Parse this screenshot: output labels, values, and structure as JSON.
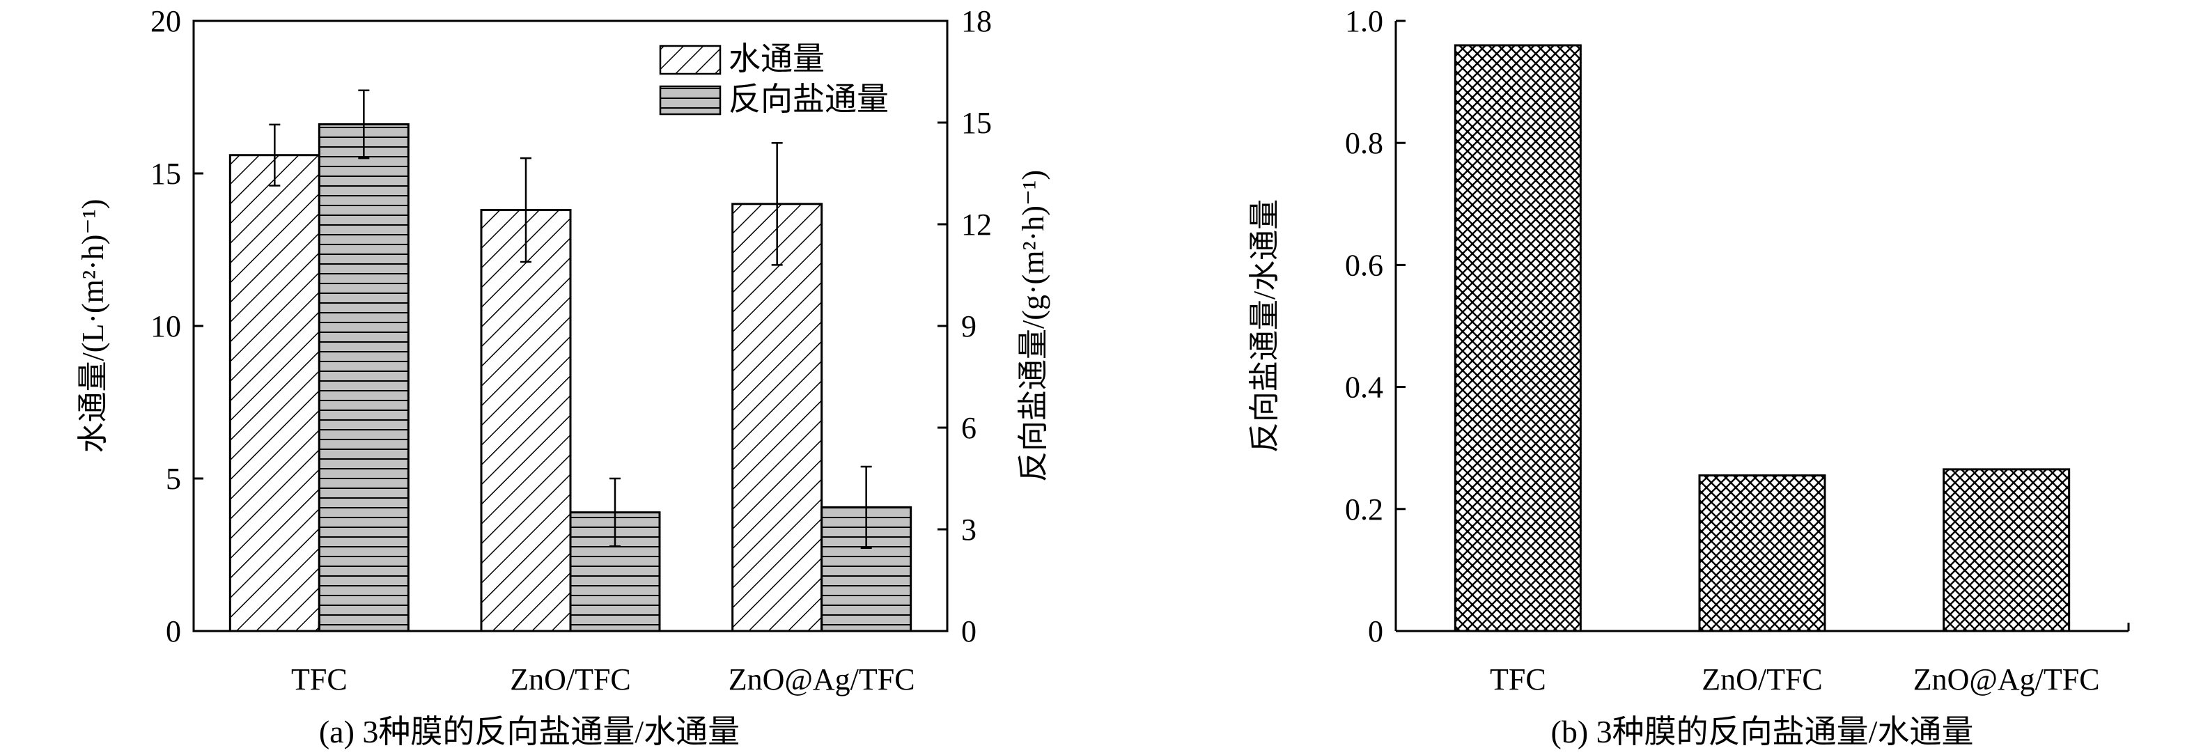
{
  "chart_data": [
    {
      "type": "bar",
      "caption": "(a) 3种膜的反向盐通量/水通量",
      "categories": [
        "TFC",
        "ZnO/TFC",
        "ZnO@Ag/TFC"
      ],
      "ylabel_left": "水通量/(L·(m²·h)⁻¹)",
      "ylabel_right": "反向盐通量/(g·(m²·h)⁻¹)",
      "ylim_left": [
        0,
        20
      ],
      "ylim_right": [
        0,
        18
      ],
      "yticks_left": [
        "0",
        "5",
        "10",
        "15",
        "20"
      ],
      "yticks_right": [
        "0",
        "3",
        "6",
        "9",
        "12",
        "15",
        "18"
      ],
      "legend_position": "top-right",
      "series": [
        {
          "name": "水通量",
          "axis": "left",
          "pattern": "diagonal-hatch",
          "values": [
            15.6,
            13.8,
            14.0
          ],
          "error": [
            1.0,
            1.7,
            2.0
          ]
        },
        {
          "name": "反向盐通量",
          "axis": "right",
          "pattern": "horizontal-lines",
          "values": [
            14.95,
            3.5,
            3.65
          ],
          "error": [
            1.0,
            1.0,
            1.2
          ]
        }
      ]
    },
    {
      "type": "bar",
      "caption": "(b) 3种膜的反向盐通量/水通量",
      "categories": [
        "TFC",
        "ZnO/TFC",
        "ZnO@Ag/TFC"
      ],
      "ylabel": "反向盐通量/水通量",
      "ylim": [
        0,
        1.0
      ],
      "yticks": [
        "0",
        "0.2",
        "0.4",
        "0.6",
        "0.8",
        "1.0"
      ],
      "series": [
        {
          "pattern": "cross-hatch",
          "values": [
            0.96,
            0.255,
            0.265
          ]
        }
      ]
    }
  ]
}
